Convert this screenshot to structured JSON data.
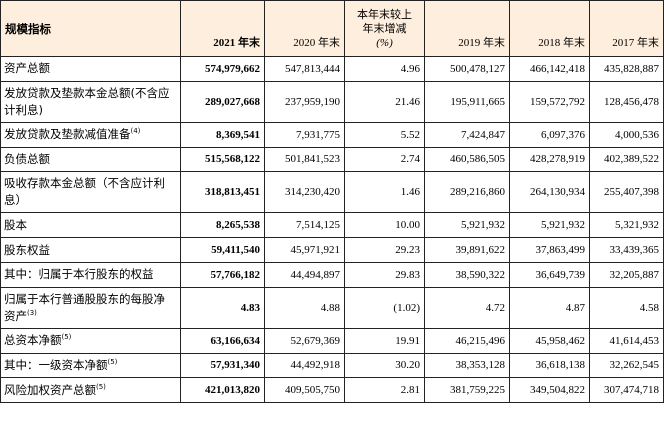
{
  "header": {
    "label": "规模指标",
    "y2021": "2021 年末",
    "y2020": "2020 年末",
    "change_line1": "本年末较上",
    "change_line2": "年末增减",
    "change_line3": "(%)",
    "y2019": "2019 年末",
    "y2018": "2018 年末",
    "y2017": "2017 年末"
  },
  "rows": [
    {
      "label": "资产总额",
      "sup": "",
      "v2021": "574,979,662",
      "v2020": "547,813,444",
      "change": "4.96",
      "v2019": "500,478,127",
      "v2018": "466,142,418",
      "v2017": "435,828,887"
    },
    {
      "label": "发放贷款及垫款本金总额(不含应计利息)",
      "sup": "",
      "v2021": "289,027,668",
      "v2020": "237,959,190",
      "change": "21.46",
      "v2019": "195,911,665",
      "v2018": "159,572,792",
      "v2017": "128,456,478"
    },
    {
      "label": "发放贷款及垫款减值准备",
      "sup": "(4)",
      "v2021": "8,369,541",
      "v2020": "7,931,775",
      "change": "5.52",
      "v2019": "7,424,847",
      "v2018": "6,097,376",
      "v2017": "4,000,536"
    },
    {
      "label": "负债总额",
      "sup": "",
      "v2021": "515,568,122",
      "v2020": "501,841,523",
      "change": "2.74",
      "v2019": "460,586,505",
      "v2018": "428,278,919",
      "v2017": "402,389,522"
    },
    {
      "label": "吸收存款本金总额（不含应计利息）",
      "sup": "",
      "v2021": "318,813,451",
      "v2020": "314,230,420",
      "change": "1.46",
      "v2019": "289,216,860",
      "v2018": "264,130,934",
      "v2017": "255,407,398"
    },
    {
      "label": "股本",
      "sup": "",
      "v2021": "8,265,538",
      "v2020": "7,514,125",
      "change": "10.00",
      "v2019": "5,921,932",
      "v2018": "5,921,932",
      "v2017": "5,321,932"
    },
    {
      "label": "股东权益",
      "sup": "",
      "v2021": "59,411,540",
      "v2020": "45,971,921",
      "change": "29.23",
      "v2019": "39,891,622",
      "v2018": "37,863,499",
      "v2017": "33,439,365"
    },
    {
      "label": "其中：归属于本行股东的权益",
      "sup": "",
      "v2021": "57,766,182",
      "v2020": "44,494,897",
      "change": "29.83",
      "v2019": "38,590,322",
      "v2018": "36,649,739",
      "v2017": "32,205,887"
    },
    {
      "label": "归属于本行普通股股东的每股净资产",
      "sup": "(3)",
      "v2021": "4.83",
      "v2020": "4.88",
      "change": "(1.02)",
      "v2019": "4.72",
      "v2018": "4.87",
      "v2017": "4.58"
    },
    {
      "label": "总资本净额",
      "sup": "(5)",
      "v2021": "63,166,634",
      "v2020": "52,679,369",
      "change": "19.91",
      "v2019": "46,215,496",
      "v2018": "45,958,462",
      "v2017": "41,614,453"
    },
    {
      "label": "其中：一级资本净额",
      "sup": "(5)",
      "v2021": "57,931,340",
      "v2020": "44,492,918",
      "change": "30.20",
      "v2019": "38,353,128",
      "v2018": "36,618,138",
      "v2017": "32,262,545"
    },
    {
      "label": "风险加权资产总额",
      "sup": "(5)",
      "v2021": "421,013,820",
      "v2020": "409,505,750",
      "change": "2.81",
      "v2019": "381,759,225",
      "v2018": "349,504,822",
      "v2017": "307,474,718"
    }
  ]
}
